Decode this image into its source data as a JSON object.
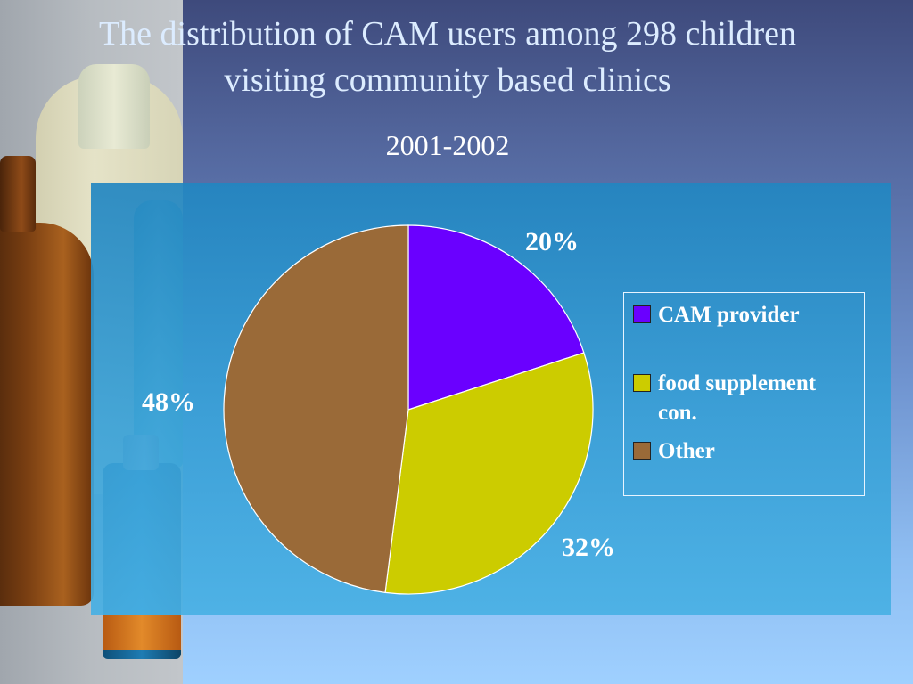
{
  "title": "The distribution of CAM users among  298 children\nvisiting community based clinics",
  "subtitle": "2001-2002",
  "colors": {
    "cam_provider": "#6a00ff",
    "food_supplement": "#cccc00",
    "other": "#9a6a38"
  },
  "chart_data": {
    "type": "pie",
    "title": "The distribution of CAM users among  298 children visiting community based clinics",
    "subtitle": "2001-2002",
    "categories": [
      "CAM provider",
      "food supplement con.",
      "Other"
    ],
    "values": [
      20,
      32,
      48
    ],
    "data_labels": [
      "20%",
      "32%",
      "48%"
    ],
    "legend": [
      "CAM provider",
      "food supplement\ncon.",
      "Other"
    ],
    "legend_position": "right",
    "start_angle": "12 o'clock, clockwise"
  }
}
